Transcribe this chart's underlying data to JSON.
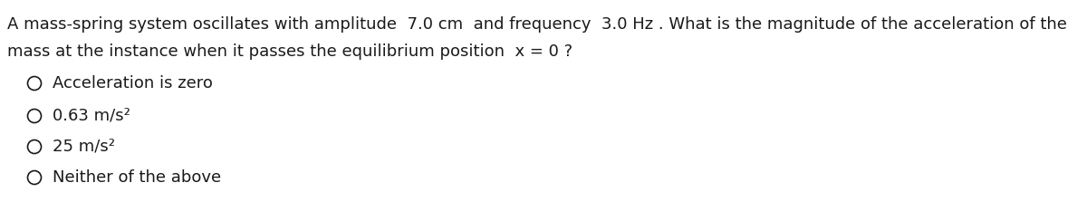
{
  "background_color": "#ffffff",
  "question_line1": "A mass-spring system oscillates with amplitude  7.0 cm  and frequency  3.0 Hz . What is the magnitude of the acceleration of the",
  "question_line2": "mass at the instance when it passes the equilibrium position  x = 0 ?",
  "options": [
    "Acceleration is zero",
    "0.63 m/s²",
    "25 m/s²",
    "Neither of the above"
  ],
  "font_size_question": 13.0,
  "font_size_options": 13.0,
  "text_color": "#1a1a1a",
  "figsize": [
    12.0,
    2.23
  ],
  "dpi": 100
}
